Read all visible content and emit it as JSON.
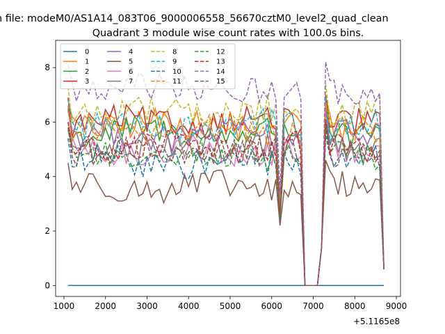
{
  "suptitle": "n file: modeM0/AS1A14_083T06_9000006558_56670cztM0_level2_quad_clean",
  "chart_data": {
    "type": "line",
    "title": "Quadrant 3 module wise count rates with 100.0s bins.",
    "xlabel": "",
    "ylabel": "",
    "x_offset_label": "+5.1165e8",
    "xlim": [
      800,
      9100
    ],
    "ylim": [
      -0.4,
      9.0
    ],
    "xticks": [
      1000,
      2000,
      3000,
      4000,
      5000,
      6000,
      7000,
      8000,
      9000
    ],
    "yticks": [
      0,
      2,
      4,
      6,
      8
    ],
    "x": [
      1100,
      1200,
      1300,
      1400,
      1500,
      1600,
      1700,
      1800,
      1900,
      2000,
      2100,
      2200,
      2300,
      2400,
      2500,
      2600,
      2700,
      2800,
      2900,
      3000,
      3100,
      3200,
      3300,
      3400,
      3500,
      3600,
      3700,
      3800,
      3900,
      4000,
      4100,
      4200,
      4300,
      4400,
      4500,
      4600,
      4700,
      4800,
      4900,
      5000,
      5100,
      5200,
      5300,
      5400,
      5500,
      5600,
      5700,
      5800,
      5900,
      6000,
      6100,
      6200,
      6300,
      6400,
      6500,
      6600,
      6700,
      6800,
      6900,
      7000,
      7100,
      7200,
      7300,
      7400,
      7500,
      7600,
      7700,
      7800,
      7900,
      8000,
      8100,
      8200,
      8300,
      8400,
      8500,
      8600,
      8700
    ],
    "gap_index": 14,
    "levels": [
      0.0,
      5.9,
      5.6,
      6.0,
      5.5,
      3.6,
      4.9,
      5.1,
      6.4,
      5.9,
      4.5,
      5.7,
      4.8,
      5.1,
      7.2,
      4.9
    ],
    "dip": [
      0.0,
      2.8,
      2.5,
      2.8,
      2.6,
      2.2,
      2.6,
      2.7,
      3.0,
      2.8,
      2.4,
      2.7,
      2.5,
      2.6,
      3.4,
      2.6
    ],
    "legend": {
      "location": "upper-left",
      "columns": 4,
      "labels": [
        "0",
        "1",
        "2",
        "3",
        "4",
        "5",
        "6",
        "7",
        "8",
        "9",
        "10",
        "11",
        "12",
        "13",
        "14",
        "15"
      ]
    },
    "series": [
      {
        "name": "0",
        "color": "#1f77b4",
        "dash": "solid"
      },
      {
        "name": "1",
        "color": "#ff7f0e",
        "dash": "solid"
      },
      {
        "name": "2",
        "color": "#2ca02c",
        "dash": "solid"
      },
      {
        "name": "3",
        "color": "#d62728",
        "dash": "solid"
      },
      {
        "name": "4",
        "color": "#9467bd",
        "dash": "solid"
      },
      {
        "name": "5",
        "color": "#8c564b",
        "dash": "solid"
      },
      {
        "name": "6",
        "color": "#e377c2",
        "dash": "solid"
      },
      {
        "name": "7",
        "color": "#7f7f7f",
        "dash": "solid"
      },
      {
        "name": "8",
        "color": "#bcbd22",
        "dash": "dashed"
      },
      {
        "name": "9",
        "color": "#17becf",
        "dash": "dashed"
      },
      {
        "name": "10",
        "color": "#1f77b4",
        "dash": "dashed"
      },
      {
        "name": "11",
        "color": "#ff7f0e",
        "dash": "dashed"
      },
      {
        "name": "12",
        "color": "#2ca02c",
        "dash": "dashed"
      },
      {
        "name": "13",
        "color": "#d62728",
        "dash": "dashed"
      },
      {
        "name": "14",
        "color": "#9467bd",
        "dash": "dashed"
      },
      {
        "name": "15",
        "color": "#8c564b",
        "dash": "dashed"
      }
    ]
  }
}
